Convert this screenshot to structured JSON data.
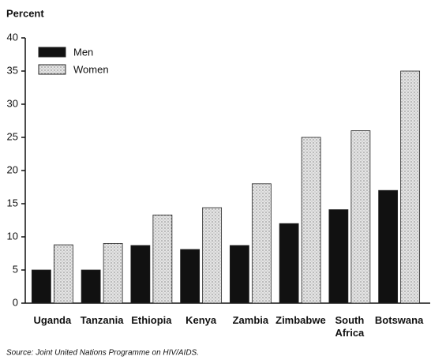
{
  "chart_data": {
    "type": "bar",
    "y_label": "Percent",
    "source": "Source: Joint United Nations Programme on HIV/AIDS.",
    "categories": [
      "Uganda",
      "Tanzania",
      "Ethiopia",
      "Kenya",
      "Zambia",
      "Zimbabwe",
      "South Africa",
      "Botswana"
    ],
    "series": [
      {
        "name": "Men",
        "color": "#111111",
        "values": [
          5,
          5,
          8.7,
          8.1,
          8.7,
          12,
          14.1,
          17
        ]
      },
      {
        "name": "Women",
        "color": "#e4e4e4",
        "values": [
          8.8,
          9,
          13.3,
          14.4,
          18,
          25,
          26,
          35
        ]
      }
    ],
    "ylim": [
      0,
      40
    ],
    "yticks": [
      0,
      5,
      10,
      15,
      20,
      25,
      30,
      35,
      40
    ],
    "grid": false,
    "legend": "upper left"
  }
}
